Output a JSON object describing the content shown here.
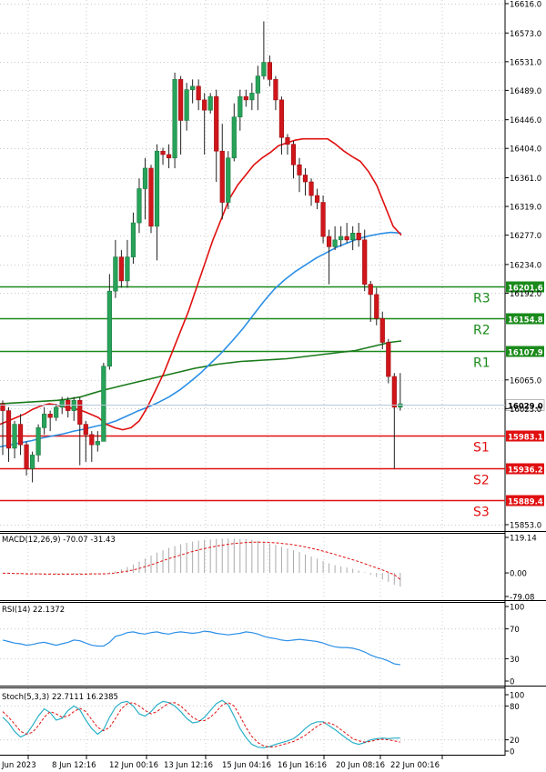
{
  "chart_data": {
    "type": "candlestick",
    "price_axis": {
      "min": 15853.0,
      "max": 16616.0,
      "ticks": [
        "16616.0",
        "16573.0",
        "16531.0",
        "16489.0",
        "16446.0",
        "16404.0",
        "16361.0",
        "16319.0",
        "16277.0",
        "16234.0",
        "16192.0",
        "16065.0",
        "16023.0",
        "15853.0"
      ]
    },
    "current_price": "16029.0",
    "levels": [
      {
        "label": "R3",
        "value": 16201.6,
        "tag": "16201.6",
        "color": "#1a8a1a"
      },
      {
        "label": "R2",
        "value": 16154.8,
        "tag": "16154.8",
        "color": "#1a8a1a"
      },
      {
        "label": "R1",
        "value": 16107.9,
        "tag": "16107.9",
        "color": "#1a8a1a"
      },
      {
        "label": "S1",
        "value": 15983.1,
        "tag": "15983.1",
        "color": "#e01010"
      },
      {
        "label": "S2",
        "value": 15936.2,
        "tag": "15936.2",
        "color": "#e01010"
      },
      {
        "label": "S3",
        "value": 15889.4,
        "tag": "15889.4",
        "color": "#e01010"
      }
    ],
    "candles": [
      [
        16030,
        16020,
        16035,
        15955
      ],
      [
        16020,
        15965,
        16025,
        15945
      ],
      [
        15965,
        16000,
        16005,
        15950
      ],
      [
        16000,
        15970,
        16015,
        15955
      ],
      [
        15970,
        15935,
        15975,
        15925
      ],
      [
        15935,
        15955,
        15960,
        15915
      ],
      [
        15955,
        15995,
        16000,
        15945
      ],
      [
        15995,
        16015,
        16025,
        15985
      ],
      [
        16015,
        16010,
        16020,
        15990
      ],
      [
        16010,
        16025,
        16030,
        16005
      ],
      [
        16025,
        16035,
        16040,
        16015
      ],
      [
        16035,
        16020,
        16040,
        16010
      ],
      [
        16020,
        16035,
        16040,
        16005
      ],
      [
        16035,
        16000,
        16040,
        15940
      ],
      [
        16000,
        15985,
        16005,
        15945
      ],
      [
        15985,
        15970,
        15990,
        15945
      ],
      [
        15970,
        15975,
        15990,
        15960
      ],
      [
        15975,
        16085,
        16090,
        16075
      ],
      [
        16085,
        16195,
        16220,
        16080
      ],
      [
        16195,
        16245,
        16270,
        16185
      ],
      [
        16245,
        16210,
        16255,
        16200
      ],
      [
        16210,
        16245,
        16270,
        16200
      ],
      [
        16245,
        16295,
        16310,
        16235
      ],
      [
        16295,
        16345,
        16360,
        16280
      ],
      [
        16345,
        16375,
        16390,
        16300
      ],
      [
        16375,
        16290,
        16380,
        16280
      ],
      [
        16290,
        16400,
        16410,
        16240
      ],
      [
        16400,
        16395,
        16405,
        16380
      ],
      [
        16395,
        16390,
        16410,
        16375
      ],
      [
        16390,
        16505,
        16515,
        16375
      ],
      [
        16505,
        16445,
        16510,
        16395
      ],
      [
        16445,
        16490,
        16500,
        16430
      ],
      [
        16490,
        16495,
        16505,
        16470
      ],
      [
        16495,
        16475,
        16505,
        16460
      ],
      [
        16475,
        16460,
        16485,
        16395
      ],
      [
        16460,
        16480,
        16485,
        16455
      ],
      [
        16480,
        16400,
        16490,
        16355
      ],
      [
        16400,
        16325,
        16440,
        16300
      ],
      [
        16325,
        16390,
        16400,
        16315
      ],
      [
        16390,
        16450,
        16470,
        16385
      ],
      [
        16450,
        16480,
        16490,
        16430
      ],
      [
        16480,
        16475,
        16490,
        16465
      ],
      [
        16475,
        16485,
        16500,
        16460
      ],
      [
        16485,
        16510,
        16525,
        16460
      ],
      [
        16510,
        16530,
        16590,
        16505
      ],
      [
        16530,
        16505,
        16540,
        16495
      ],
      [
        16505,
        16475,
        16510,
        16460
      ],
      [
        16475,
        16420,
        16480,
        16395
      ],
      [
        16420,
        16410,
        16425,
        16395
      ],
      [
        16410,
        16380,
        16415,
        16360
      ],
      [
        16380,
        16365,
        16390,
        16340
      ],
      [
        16365,
        16355,
        16375,
        16335
      ],
      [
        16355,
        16335,
        16360,
        16320
      ],
      [
        16335,
        16325,
        16345,
        16315
      ],
      [
        16325,
        16275,
        16335,
        16265
      ],
      [
        16275,
        16260,
        16285,
        16205
      ],
      [
        16260,
        16270,
        16290,
        16255
      ],
      [
        16270,
        16275,
        16290,
        16260
      ],
      [
        16275,
        16270,
        16295,
        16265
      ],
      [
        16270,
        16280,
        16290,
        16255
      ],
      [
        16280,
        16270,
        16295,
        16260
      ],
      [
        16270,
        16205,
        16285,
        16195
      ],
      [
        16205,
        16190,
        16210,
        16150
      ],
      [
        16190,
        16155,
        16200,
        16145
      ],
      [
        16155,
        16120,
        16165,
        16110
      ],
      [
        16120,
        16070,
        16125,
        16060
      ],
      [
        16070,
        16025,
        16075,
        15935
      ],
      [
        16025,
        16030,
        16075,
        16020
      ]
    ],
    "ma_red": [
      16000,
      16005,
      16010,
      16015,
      16022,
      16027,
      16030,
      16028,
      16025,
      16023,
      16020,
      16015,
      16010,
      16000,
      15995,
      15992,
      15995,
      16005,
      16025,
      16050,
      16075,
      16105,
      16135,
      16165,
      16200,
      16235,
      16270,
      16300,
      16330,
      16350,
      16365,
      16380,
      16390,
      16398,
      16408,
      16412,
      16416,
      16418,
      16418,
      16418,
      16418,
      16410,
      16400,
      16392,
      16385,
      16370,
      16350,
      16320,
      16290,
      16277
    ],
    "ma_blue": [
      15967,
      15970,
      15973,
      15976,
      15980,
      15983,
      15986,
      15990,
      15993,
      15997,
      16000,
      16005,
      16012,
      16019,
      16025,
      16032,
      16040,
      16050,
      16062,
      16075,
      16090,
      16105,
      16122,
      16140,
      16160,
      16180,
      16198,
      16212,
      16224,
      16234,
      16244,
      16252,
      16260,
      16266,
      16272,
      16276,
      16279,
      16281,
      16280
    ],
    "ma_green": [
      16030,
      16031,
      16032,
      16033,
      16034,
      16035,
      16037,
      16040,
      16045,
      16050,
      16054,
      16058,
      16062,
      16066,
      16070,
      16074,
      16078,
      16082,
      16085,
      16088,
      16090,
      16092,
      16093,
      16094,
      16095,
      16096,
      16098,
      16100,
      16102,
      16104,
      16106,
      16108,
      16112,
      16116,
      16120,
      16122
    ],
    "macd": {
      "label": "MACD(12,26,9) -70.07 -31.43",
      "ticks": [
        "119.14",
        "0.00",
        "-79.08"
      ],
      "histogram": [
        -1,
        -2,
        -3,
        -3,
        -4,
        -4,
        -5,
        -5,
        -5,
        -5,
        -4,
        -4,
        -4,
        -4,
        -3,
        -3,
        -2,
        -1,
        2,
        6,
        12,
        20,
        28,
        38,
        48,
        58,
        68,
        76,
        84,
        90,
        96,
        101,
        105,
        108,
        111,
        112,
        114,
        115,
        115,
        115,
        114,
        113,
        111,
        108,
        104,
        99,
        94,
        88,
        82,
        76,
        70,
        62,
        55,
        48,
        40,
        32,
        26,
        22,
        18,
        14,
        8,
        2,
        -6,
        -14,
        -22,
        -30,
        -40,
        -46
      ],
      "signal": [
        -1,
        -1,
        -2,
        -2,
        -3,
        -3,
        -3,
        -4,
        -4,
        -4,
        -4,
        -4,
        -4,
        -4,
        -4,
        -3,
        -3,
        -3,
        -2,
        0,
        3,
        6,
        10,
        15,
        21,
        27,
        34,
        41,
        48,
        54,
        60,
        66,
        72,
        77,
        82,
        86,
        90,
        93,
        96,
        99,
        100,
        102,
        103,
        103,
        103,
        102,
        101,
        99,
        97,
        94,
        91,
        87,
        83,
        78,
        73,
        68,
        62,
        56,
        50,
        44,
        38,
        31,
        24,
        17,
        10,
        2,
        -6,
        -22
      ]
    },
    "rsi": {
      "label": "RSI(14) 22.1372",
      "ticks": [
        "100",
        "70",
        "30",
        "0"
      ],
      "values": [
        55,
        53,
        51,
        50,
        48,
        49,
        51,
        52,
        50,
        48,
        50,
        52,
        55,
        54,
        51,
        48,
        47,
        47,
        52,
        60,
        62,
        65,
        66,
        64,
        63,
        65,
        66,
        64,
        63,
        65,
        66,
        65,
        64,
        65,
        67,
        66,
        64,
        63,
        62,
        63,
        64,
        66,
        65,
        63,
        60,
        58,
        57,
        55,
        54,
        55,
        56,
        55,
        54,
        53,
        51,
        48,
        46,
        45,
        45,
        44,
        42,
        39,
        35,
        32,
        30,
        27,
        23,
        22
      ]
    },
    "stoch": {
      "label": "Stoch(5,3,3) 22.7111 16.2385",
      "ticks": [
        "100",
        "80",
        "20",
        "0"
      ],
      "k": [
        60,
        50,
        35,
        25,
        30,
        45,
        62,
        75,
        68,
        55,
        58,
        72,
        80,
        73,
        55,
        40,
        30,
        38,
        60,
        78,
        86,
        88,
        80,
        66,
        62,
        70,
        82,
        88,
        86,
        80,
        70,
        58,
        50,
        52,
        60,
        72,
        84,
        90,
        82,
        62,
        40,
        24,
        12,
        7,
        6,
        8,
        12,
        15,
        18,
        22,
        30,
        40,
        48,
        52,
        52,
        45,
        38,
        30,
        22,
        15,
        12,
        15,
        20,
        22,
        23,
        22,
        23,
        23
      ],
      "d": [
        70,
        60,
        48,
        35,
        30,
        33,
        45,
        60,
        70,
        66,
        60,
        62,
        70,
        76,
        70,
        56,
        42,
        36,
        42,
        58,
        75,
        84,
        86,
        80,
        72,
        66,
        70,
        78,
        85,
        86,
        80,
        70,
        60,
        54,
        54,
        60,
        70,
        82,
        86,
        80,
        62,
        42,
        26,
        15,
        9,
        7,
        8,
        11,
        14,
        17,
        22,
        28,
        36,
        44,
        50,
        50,
        46,
        38,
        30,
        22,
        18,
        16,
        17,
        20,
        21,
        20,
        18,
        16
      ]
    },
    "time_labels": [
      "Jun 2023",
      "8 Jun 12:16",
      "12 Jun 00:16",
      "13 Jun 12:16",
      "15 Jun 04:16",
      "16 Jun 16:16",
      "20 Jun 08:16",
      "22 Jun 00:16"
    ]
  }
}
